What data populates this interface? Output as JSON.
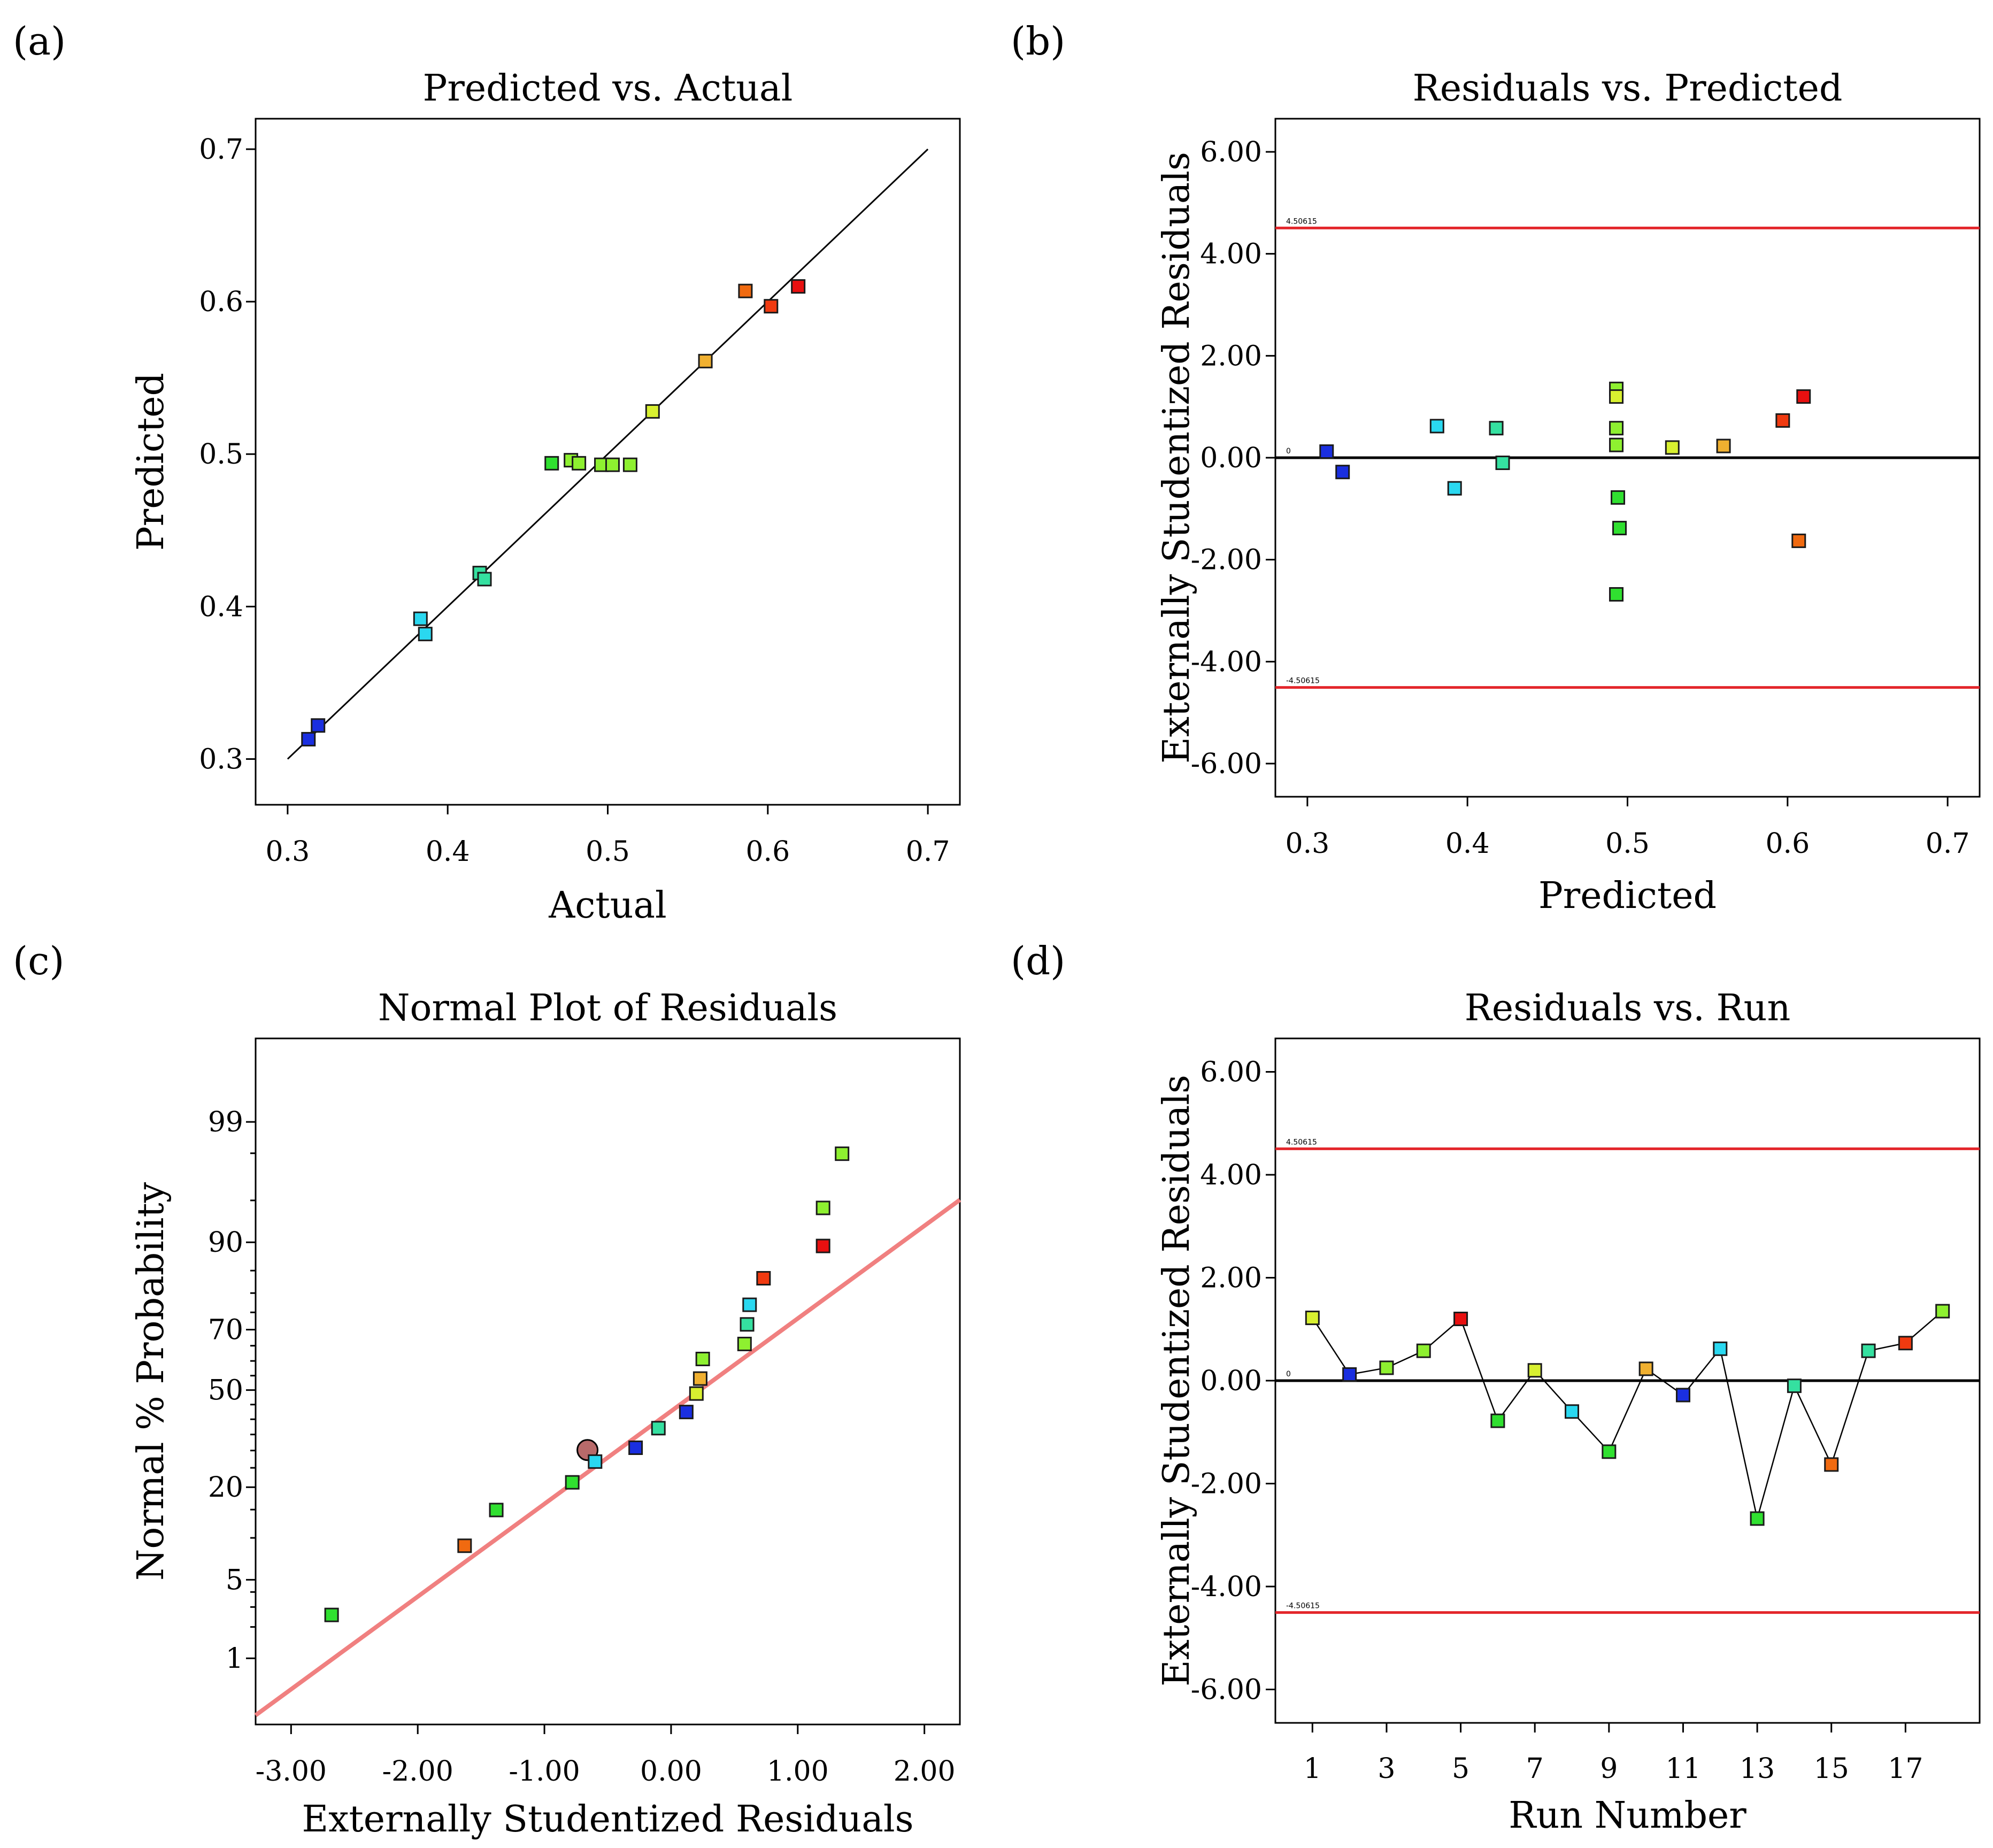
{
  "figure": {
    "panel_labels": [
      "(a)",
      "(b)",
      "(c)",
      "(d)"
    ]
  },
  "colors": {
    "axis": "#000000",
    "reference_line": "#000000",
    "limit_line": "#e3262b",
    "normal_fit_line": "#f08080",
    "highlight_point": "#b86a6a"
  },
  "chart_data": [
    {
      "id": "a",
      "type": "scatter",
      "title": "Predicted vs. Actual",
      "xlabel": "Actual",
      "ylabel": "Predicted",
      "xlim": [
        0.28,
        0.72
      ],
      "ylim": [
        0.27,
        0.72
      ],
      "xticks": [
        0.3,
        0.4,
        0.5,
        0.6,
        0.7
      ],
      "xtick_labels": [
        "0.3",
        "0.4",
        "0.5",
        "0.6",
        "0.7"
      ],
      "yticks": [
        0.3,
        0.4,
        0.5,
        0.6,
        0.7
      ],
      "ytick_labels": [
        "0.3",
        "0.4",
        "0.5",
        "0.6",
        "0.7"
      ],
      "reference_line": {
        "from": [
          0.3,
          0.3
        ],
        "to": [
          0.7,
          0.7
        ]
      },
      "points": [
        {
          "x": 0.313,
          "y": 0.313,
          "color": "#1a2fe0"
        },
        {
          "x": 0.319,
          "y": 0.322,
          "color": "#1a2fe0"
        },
        {
          "x": 0.383,
          "y": 0.392,
          "color": "#2ad8f0"
        },
        {
          "x": 0.386,
          "y": 0.382,
          "color": "#2ad8f0"
        },
        {
          "x": 0.42,
          "y": 0.422,
          "color": "#35e0a0"
        },
        {
          "x": 0.423,
          "y": 0.418,
          "color": "#35e0a0"
        },
        {
          "x": 0.465,
          "y": 0.494,
          "color": "#30e030"
        },
        {
          "x": 0.477,
          "y": 0.496,
          "color": "#8ef030"
        },
        {
          "x": 0.482,
          "y": 0.494,
          "color": "#8ef030"
        },
        {
          "x": 0.496,
          "y": 0.493,
          "color": "#8ef030"
        },
        {
          "x": 0.503,
          "y": 0.493,
          "color": "#8ef030"
        },
        {
          "x": 0.514,
          "y": 0.493,
          "color": "#8ef030"
        },
        {
          "x": 0.528,
          "y": 0.528,
          "color": "#d8f030"
        },
        {
          "x": 0.561,
          "y": 0.561,
          "color": "#f0b030"
        },
        {
          "x": 0.586,
          "y": 0.607,
          "color": "#f06a10"
        },
        {
          "x": 0.602,
          "y": 0.597,
          "color": "#f03a10"
        },
        {
          "x": 0.619,
          "y": 0.61,
          "color": "#e81010"
        }
      ]
    },
    {
      "id": "b",
      "type": "scatter",
      "title": "Residuals vs. Predicted",
      "xlabel": "Predicted",
      "ylabel": "Externally Studentized Residuals",
      "xlim": [
        0.28,
        0.72
      ],
      "ylim": [
        -6.65,
        6.65
      ],
      "xticks": [
        0.3,
        0.4,
        0.5,
        0.6,
        0.7
      ],
      "xtick_labels": [
        "0.3",
        "0.4",
        "0.5",
        "0.6",
        "0.7"
      ],
      "yticks": [
        6,
        4,
        2,
        0,
        -2,
        -4,
        -6
      ],
      "ytick_labels": [
        "6.00",
        "4.00",
        "2.00",
        "0.00",
        "-2.00",
        "-4.00",
        "-6.00"
      ],
      "limit_upper": 4.50615,
      "limit_lower": -4.50615,
      "limit_upper_label": "4.50615",
      "limit_lower_label": "-4.50615",
      "zero_label": "0",
      "points": [
        {
          "x": 0.312,
          "y": 0.12,
          "color": "#1a2fe0"
        },
        {
          "x": 0.322,
          "y": -0.28,
          "color": "#1a2fe0"
        },
        {
          "x": 0.381,
          "y": 0.62,
          "color": "#2ad8f0"
        },
        {
          "x": 0.392,
          "y": -0.6,
          "color": "#2ad8f0"
        },
        {
          "x": 0.418,
          "y": 0.58,
          "color": "#35e0a0"
        },
        {
          "x": 0.422,
          "y": -0.1,
          "color": "#35e0a0"
        },
        {
          "x": 0.493,
          "y": 1.35,
          "color": "#8ef030"
        },
        {
          "x": 0.493,
          "y": 1.2,
          "color": "#d8f030"
        },
        {
          "x": 0.493,
          "y": 0.58,
          "color": "#8ef030"
        },
        {
          "x": 0.493,
          "y": 0.25,
          "color": "#8ef030"
        },
        {
          "x": 0.494,
          "y": -0.78,
          "color": "#30e030"
        },
        {
          "x": 0.495,
          "y": -1.38,
          "color": "#30e030"
        },
        {
          "x": 0.493,
          "y": -2.68,
          "color": "#30e030"
        },
        {
          "x": 0.528,
          "y": 0.2,
          "color": "#d8f030"
        },
        {
          "x": 0.56,
          "y": 0.23,
          "color": "#f0b030"
        },
        {
          "x": 0.597,
          "y": 0.73,
          "color": "#f03a10"
        },
        {
          "x": 0.607,
          "y": -1.63,
          "color": "#f06a10"
        },
        {
          "x": 0.61,
          "y": 1.2,
          "color": "#e81010"
        }
      ]
    },
    {
      "id": "c",
      "type": "scatter",
      "title": "Normal Plot of Residuals",
      "xlabel": "Externally Studentized Residuals",
      "ylabel": "Normal % Probability",
      "xlim": [
        -3.28,
        2.28
      ],
      "ylim": [
        -2.9,
        3.05
      ],
      "note": "y axis is normal-probability scale (z units); tick labels are percentages",
      "xticks": [
        -3,
        -2,
        -1,
        0,
        1,
        2
      ],
      "xtick_labels": [
        "-3.00",
        "-2.00",
        "-1.00",
        "0.00",
        "1.00",
        "2.00"
      ],
      "yticks_z": [
        -2.326,
        -1.645,
        -0.842,
        0.0,
        0.524,
        1.282,
        2.326
      ],
      "ytick_labels": [
        "1",
        "5",
        "20",
        "50",
        "70",
        "90",
        "99"
      ],
      "fit_line": {
        "from": [
          -3.28,
          -2.82
        ],
        "to": [
          2.28,
          1.65
        ]
      },
      "points": [
        {
          "x": -2.68,
          "y": -1.95,
          "color": "#30e030"
        },
        {
          "x": -1.63,
          "y": -1.35,
          "color": "#f06a10"
        },
        {
          "x": -1.38,
          "y": -1.04,
          "color": "#30e030"
        },
        {
          "x": -0.78,
          "y": -0.8,
          "color": "#30e030"
        },
        {
          "x": -0.6,
          "y": -0.62,
          "color": "#2ad8f0"
        },
        {
          "x": -0.28,
          "y": -0.5,
          "color": "#1a2fe0"
        },
        {
          "x": -0.1,
          "y": -0.33,
          "color": "#35e0a0"
        },
        {
          "x": 0.12,
          "y": -0.19,
          "color": "#1a2fe0"
        },
        {
          "x": 0.2,
          "y": -0.03,
          "color": "#d8f030"
        },
        {
          "x": 0.23,
          "y": 0.1,
          "color": "#f0b030"
        },
        {
          "x": 0.25,
          "y": 0.27,
          "color": "#8ef030"
        },
        {
          "x": 0.58,
          "y": 0.4,
          "color": "#8ef030"
        },
        {
          "x": 0.6,
          "y": 0.57,
          "color": "#35e0a0"
        },
        {
          "x": 0.62,
          "y": 0.74,
          "color": "#2ad8f0"
        },
        {
          "x": 0.73,
          "y": 0.97,
          "color": "#f03a10"
        },
        {
          "x": 1.2,
          "y": 1.25,
          "color": "#e81010"
        },
        {
          "x": 1.2,
          "y": 1.58,
          "color": "#8ef030"
        },
        {
          "x": 1.35,
          "y": 2.05,
          "color": "#8ef030"
        }
      ],
      "highlight_point": {
        "x": -0.66,
        "y": -0.52
      }
    },
    {
      "id": "d",
      "type": "line",
      "title": "Residuals vs. Run",
      "xlabel": "Run Number",
      "ylabel": "Externally Studentized Residuals",
      "xlim": [
        0.0,
        19.0
      ],
      "ylim": [
        -6.65,
        6.65
      ],
      "xticks": [
        1,
        3,
        5,
        7,
        9,
        11,
        13,
        15,
        17
      ],
      "xtick_labels": [
        "1",
        "3",
        "5",
        "7",
        "9",
        "11",
        "13",
        "15",
        "17"
      ],
      "yticks": [
        6,
        4,
        2,
        0,
        -2,
        -4,
        -6
      ],
      "ytick_labels": [
        "6.00",
        "4.00",
        "2.00",
        "0.00",
        "-2.00",
        "-4.00",
        "-6.00"
      ],
      "limit_upper": 4.50615,
      "limit_lower": -4.50615,
      "limit_upper_label": "4.50615",
      "limit_lower_label": "-4.50615",
      "zero_label": "0",
      "points": [
        {
          "x": 1,
          "y": 1.22,
          "color": "#d8f030"
        },
        {
          "x": 2,
          "y": 0.12,
          "color": "#1a2fe0"
        },
        {
          "x": 3,
          "y": 0.25,
          "color": "#8ef030"
        },
        {
          "x": 4,
          "y": 0.58,
          "color": "#8ef030"
        },
        {
          "x": 5,
          "y": 1.2,
          "color": "#e81010"
        },
        {
          "x": 6,
          "y": -0.78,
          "color": "#30e030"
        },
        {
          "x": 7,
          "y": 0.2,
          "color": "#d8f030"
        },
        {
          "x": 8,
          "y": -0.6,
          "color": "#2ad8f0"
        },
        {
          "x": 9,
          "y": -1.38,
          "color": "#30e030"
        },
        {
          "x": 10,
          "y": 0.23,
          "color": "#f0b030"
        },
        {
          "x": 11,
          "y": -0.28,
          "color": "#1a2fe0"
        },
        {
          "x": 12,
          "y": 0.62,
          "color": "#2ad8f0"
        },
        {
          "x": 13,
          "y": -2.68,
          "color": "#30e030"
        },
        {
          "x": 14,
          "y": -0.1,
          "color": "#35e0a0"
        },
        {
          "x": 15,
          "y": -1.63,
          "color": "#f06a10"
        },
        {
          "x": 16,
          "y": 0.58,
          "color": "#35e0a0"
        },
        {
          "x": 17,
          "y": 0.73,
          "color": "#f03a10"
        },
        {
          "x": 18,
          "y": 1.35,
          "color": "#8ef030"
        }
      ]
    }
  ]
}
